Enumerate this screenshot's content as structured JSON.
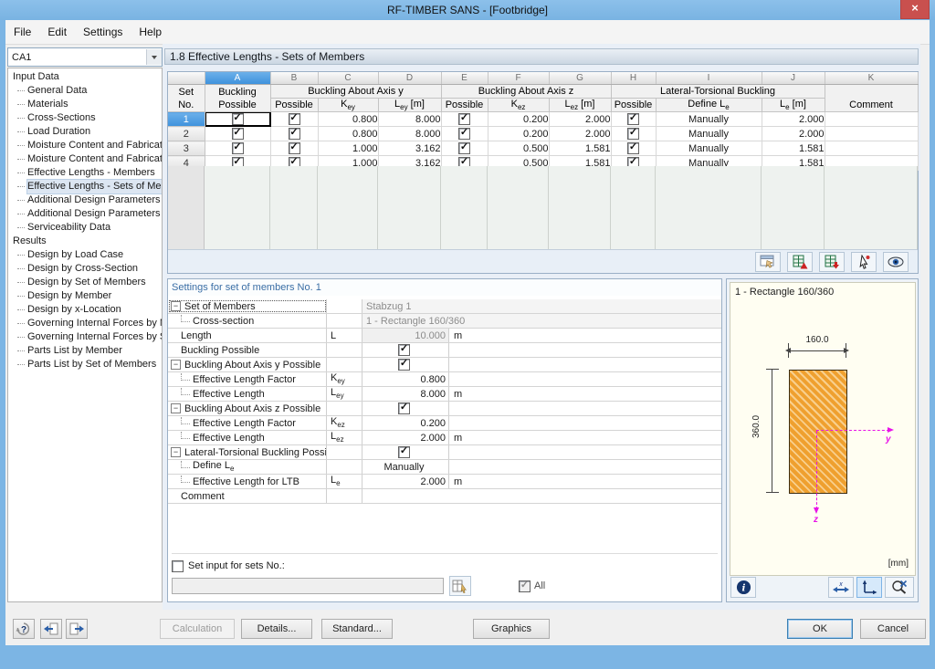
{
  "window": {
    "title": "RF-TIMBER SANS - [Footbridge]",
    "close_label": "×"
  },
  "menu": {
    "items": [
      "File",
      "Edit",
      "Settings",
      "Help"
    ]
  },
  "sidebar": {
    "case_selector_value": "CA1",
    "sections": [
      {
        "label": "Input Data",
        "selected_index": 7,
        "items": [
          "General Data",
          "Materials",
          "Cross-Sections",
          "Load Duration",
          "Moisture Content and Fabricati",
          "Moisture Content and Fabricati",
          "Effective Lengths - Members",
          "Effective Lengths - Sets of Mer",
          "Additional Design Parameters -",
          "Additional Design Parameters -",
          "Serviceability Data"
        ]
      },
      {
        "label": "Results",
        "selected_index": -1,
        "items": [
          "Design by Load Case",
          "Design by Cross-Section",
          "Design by Set of Members",
          "Design by Member",
          "Design by x-Location",
          "Governing Internal Forces by M",
          "Governing Internal Forces by S",
          "Parts List by Member",
          "Parts List by Set of Members"
        ]
      }
    ]
  },
  "section_header": "1.8 Effective Lengths - Sets of Members",
  "table": {
    "letters": [
      "",
      "A",
      "B",
      "C",
      "D",
      "E",
      "F",
      "G",
      "H",
      "I",
      "J",
      "K"
    ],
    "selected_letter": "A",
    "header": {
      "set": "Set\nNo.",
      "buckling": "Buckling\nPossible",
      "group_y": "Buckling About Axis y",
      "group_z": "Buckling About Axis z",
      "group_ltb": "Lateral-Torsional Buckling",
      "possible": "Possible",
      "key": {
        "base": "K",
        "sub": "ey",
        "suffix": ""
      },
      "ley": {
        "base": "L",
        "sub": "ey",
        "suffix": " [m]"
      },
      "kez": {
        "base": "K",
        "sub": "ez",
        "suffix": ""
      },
      "lez": {
        "base": "L",
        "sub": "ez",
        "suffix": " [m]"
      },
      "define_le": {
        "base": "Define L",
        "sub": "e",
        "suffix": ""
      },
      "le": {
        "base": "L",
        "sub": "e",
        "suffix": " [m]"
      },
      "comment": "Comment"
    },
    "rows": [
      {
        "no": "1",
        "buckling": true,
        "y_possible": true,
        "key": "0.800",
        "ley": "8.000",
        "z_possible": true,
        "kez": "0.200",
        "lez": "2.000",
        "ltb": true,
        "define": "Manually",
        "le": "2.000",
        "comment": "",
        "selected": true,
        "focused": true
      },
      {
        "no": "2",
        "buckling": true,
        "y_possible": true,
        "key": "0.800",
        "ley": "8.000",
        "z_possible": true,
        "kez": "0.200",
        "lez": "2.000",
        "ltb": true,
        "define": "Manually",
        "le": "2.000",
        "comment": "",
        "selected": false,
        "focused": false
      },
      {
        "no": "3",
        "buckling": true,
        "y_possible": true,
        "key": "1.000",
        "ley": "3.162",
        "z_possible": true,
        "kez": "0.500",
        "lez": "1.581",
        "ltb": true,
        "define": "Manually",
        "le": "1.581",
        "comment": "",
        "selected": false,
        "focused": false
      },
      {
        "no": "4",
        "buckling": true,
        "y_possible": true,
        "key": "1.000",
        "ley": "3.162",
        "z_possible": true,
        "kez": "0.500",
        "lez": "1.581",
        "ltb": true,
        "define": "Manually",
        "le": "1.581",
        "comment": "",
        "selected": false,
        "focused": false
      }
    ],
    "toolbar_icons": [
      "edit-in-table-icon",
      "import-excel-icon",
      "export-excel-icon",
      "pick-members-icon",
      "view-graphics-icon"
    ]
  },
  "settings": {
    "title": "Settings for set of members No. 1",
    "rows": [
      {
        "kind": "group",
        "label": "Set of Members",
        "sym": "",
        "sub": "",
        "value": "Stabzug 1",
        "vtype": "distext",
        "unit": "",
        "focused": true
      },
      {
        "kind": "child",
        "label": "Cross-section",
        "sym": "",
        "sub": "",
        "value": "1 - Rectangle 160/360",
        "vtype": "distext",
        "unit": ""
      },
      {
        "kind": "plain",
        "label": "Length",
        "sym": "L",
        "sub": "",
        "value": "10.000",
        "vtype": "disnum",
        "unit": "m"
      },
      {
        "kind": "plain",
        "label": "Buckling Possible",
        "sym": "",
        "sub": "",
        "value": "",
        "vtype": "check",
        "unit": ""
      },
      {
        "kind": "group",
        "label": "Buckling About Axis y Possible",
        "sym": "",
        "sub": "",
        "value": "",
        "vtype": "check",
        "unit": ""
      },
      {
        "kind": "child",
        "label": "Effective Length Factor",
        "sym": "K",
        "sub": "ey",
        "value": "0.800",
        "vtype": "num",
        "unit": ""
      },
      {
        "kind": "child",
        "label": "Effective Length",
        "sym": "L",
        "sub": "ey",
        "value": "8.000",
        "vtype": "num",
        "unit": "m"
      },
      {
        "kind": "group",
        "label": "Buckling About Axis z Possible",
        "sym": "",
        "sub": "",
        "value": "",
        "vtype": "check",
        "unit": ""
      },
      {
        "kind": "child",
        "label": "Effective Length Factor",
        "sym": "K",
        "sub": "ez",
        "value": "0.200",
        "vtype": "num",
        "unit": ""
      },
      {
        "kind": "child",
        "label": "Effective Length",
        "sym": "L",
        "sub": "ez",
        "value": "2.000",
        "vtype": "num",
        "unit": "m"
      },
      {
        "kind": "group",
        "label": "Lateral-Torsional Buckling Possible",
        "sym": "",
        "sub": "",
        "value": "",
        "vtype": "check",
        "unit": ""
      },
      {
        "kind": "child",
        "label": "Define L",
        "label_sub": "e",
        "sym": "",
        "sub": "",
        "value": "Manually",
        "vtype": "center",
        "unit": ""
      },
      {
        "kind": "child",
        "label": "Effective Length for LTB",
        "sym": "L",
        "sub": "e",
        "value": "2.000",
        "vtype": "num",
        "unit": "m"
      },
      {
        "kind": "plain",
        "label": "Comment",
        "sym": "",
        "sub": "",
        "value": "",
        "vtype": "empty",
        "unit": ""
      }
    ],
    "footer": {
      "checkbox_label": "Set input for sets No.:",
      "input_value": "",
      "all_label": "All",
      "all_checked": true
    }
  },
  "graphics": {
    "title": "1 - Rectangle 160/360",
    "width_dim": "160.0",
    "height_dim": "360.0",
    "axis_y": "y",
    "axis_z": "z",
    "unit_label": "[mm]",
    "panel_icons": [
      "info-icon",
      "x-axis-icon",
      "axes-icon",
      "zoom-reset-icon"
    ]
  },
  "bottom": {
    "calculation": "Calculation",
    "details": "Details...",
    "standard": "Standard...",
    "graphics": "Graphics",
    "ok": "OK",
    "cancel": "Cancel",
    "icons": [
      "help-icon",
      "previous-module-icon",
      "next-module-icon"
    ]
  },
  "colors": {
    "titlebar_blue": "#7cb5e4",
    "close_red": "#c9504e",
    "selection_blue": "#4f9fe0",
    "hatch_orange": "#efa02f",
    "axis_magenta": "#e813e8",
    "settings_header_blue": "#3a6ea5"
  }
}
